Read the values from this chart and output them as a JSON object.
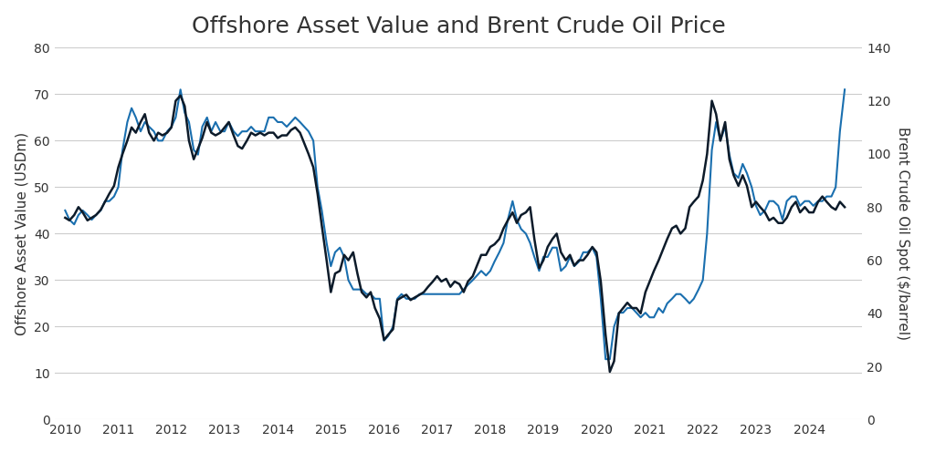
{
  "title": "Offshore Asset Value and Brent Crude Oil Price",
  "ylabel_left": "Offshore Asset Value (USDm)",
  "ylabel_right": "Brent Crude Oil Spot ($/barrel)",
  "ylim_left": [
    0,
    80
  ],
  "ylim_right": [
    0,
    140
  ],
  "yticks_left": [
    0,
    10,
    20,
    30,
    40,
    50,
    60,
    70,
    80
  ],
  "yticks_right": [
    0,
    20,
    40,
    60,
    80,
    100,
    120,
    140
  ],
  "xlim": [
    2009.8,
    2025.0
  ],
  "xticks": [
    2010,
    2011,
    2012,
    2013,
    2014,
    2015,
    2016,
    2017,
    2018,
    2019,
    2020,
    2021,
    2022,
    2023,
    2024
  ],
  "color_offshore": "#1a6faf",
  "color_brent": "#0d1b2a",
  "linewidth_offshore": 1.5,
  "linewidth_brent": 1.8,
  "background_color": "#ffffff",
  "grid_color": "#cccccc",
  "title_fontsize": 18,
  "label_fontsize": 11,
  "tick_fontsize": 10,
  "brent_data": {
    "dates": [
      2010.0,
      2010.08,
      2010.17,
      2010.25,
      2010.33,
      2010.42,
      2010.5,
      2010.58,
      2010.67,
      2010.75,
      2010.83,
      2010.92,
      2011.0,
      2011.08,
      2011.17,
      2011.25,
      2011.33,
      2011.42,
      2011.5,
      2011.58,
      2011.67,
      2011.75,
      2011.83,
      2011.92,
      2012.0,
      2012.08,
      2012.17,
      2012.25,
      2012.33,
      2012.42,
      2012.5,
      2012.58,
      2012.67,
      2012.75,
      2012.83,
      2012.92,
      2013.0,
      2013.08,
      2013.17,
      2013.25,
      2013.33,
      2013.42,
      2013.5,
      2013.58,
      2013.67,
      2013.75,
      2013.83,
      2013.92,
      2014.0,
      2014.08,
      2014.17,
      2014.25,
      2014.33,
      2014.42,
      2014.5,
      2014.58,
      2014.67,
      2014.75,
      2014.83,
      2014.92,
      2015.0,
      2015.08,
      2015.17,
      2015.25,
      2015.33,
      2015.42,
      2015.5,
      2015.58,
      2015.67,
      2015.75,
      2015.83,
      2015.92,
      2016.0,
      2016.08,
      2016.17,
      2016.25,
      2016.33,
      2016.42,
      2016.5,
      2016.58,
      2016.67,
      2016.75,
      2016.83,
      2016.92,
      2017.0,
      2017.08,
      2017.17,
      2017.25,
      2017.33,
      2017.42,
      2017.5,
      2017.58,
      2017.67,
      2017.75,
      2017.83,
      2017.92,
      2018.0,
      2018.08,
      2018.17,
      2018.25,
      2018.33,
      2018.42,
      2018.5,
      2018.58,
      2018.67,
      2018.75,
      2018.83,
      2018.92,
      2019.0,
      2019.08,
      2019.17,
      2019.25,
      2019.33,
      2019.42,
      2019.5,
      2019.58,
      2019.67,
      2019.75,
      2019.83,
      2019.92,
      2020.0,
      2020.08,
      2020.17,
      2020.25,
      2020.33,
      2020.42,
      2020.5,
      2020.58,
      2020.67,
      2020.75,
      2020.83,
      2020.92,
      2021.0,
      2021.08,
      2021.17,
      2021.25,
      2021.33,
      2021.42,
      2021.5,
      2021.58,
      2021.67,
      2021.75,
      2021.83,
      2021.92,
      2022.0,
      2022.08,
      2022.17,
      2022.25,
      2022.33,
      2022.42,
      2022.5,
      2022.58,
      2022.67,
      2022.75,
      2022.83,
      2022.92,
      2023.0,
      2023.08,
      2023.17,
      2023.25,
      2023.33,
      2023.42,
      2023.5,
      2023.58,
      2023.67,
      2023.75,
      2023.83,
      2023.92,
      2024.0,
      2024.08,
      2024.17,
      2024.25,
      2024.33,
      2024.42,
      2024.5,
      2024.58,
      2024.67
    ],
    "values": [
      76,
      75,
      77,
      80,
      78,
      75,
      76,
      77,
      79,
      82,
      85,
      88,
      95,
      100,
      105,
      110,
      108,
      112,
      115,
      108,
      105,
      108,
      107,
      108,
      110,
      120,
      122,
      118,
      105,
      98,
      102,
      106,
      112,
      108,
      107,
      108,
      110,
      112,
      107,
      103,
      102,
      105,
      108,
      107,
      108,
      107,
      108,
      108,
      106,
      107,
      107,
      109,
      110,
      108,
      104,
      100,
      95,
      85,
      73,
      60,
      48,
      55,
      56,
      62,
      60,
      63,
      55,
      48,
      46,
      48,
      42,
      38,
      30,
      32,
      34,
      45,
      46,
      47,
      45,
      46,
      47,
      48,
      50,
      52,
      54,
      52,
      53,
      50,
      52,
      51,
      48,
      52,
      54,
      58,
      62,
      62,
      65,
      66,
      68,
      72,
      75,
      78,
      74,
      77,
      78,
      80,
      68,
      57,
      60,
      65,
      68,
      70,
      63,
      60,
      62,
      58,
      60,
      60,
      62,
      65,
      63,
      52,
      32,
      18,
      22,
      40,
      42,
      44,
      42,
      42,
      40,
      48,
      52,
      56,
      60,
      64,
      68,
      72,
      73,
      70,
      72,
      80,
      82,
      84,
      90,
      100,
      120,
      115,
      105,
      112,
      98,
      92,
      88,
      92,
      88,
      80,
      82,
      80,
      78,
      75,
      76,
      74,
      74,
      76,
      80,
      82,
      78,
      80,
      78,
      78,
      82,
      84,
      82,
      80,
      79,
      82,
      80
    ]
  },
  "offshore_data": {
    "dates": [
      2010.0,
      2010.08,
      2010.17,
      2010.25,
      2010.33,
      2010.42,
      2010.5,
      2010.58,
      2010.67,
      2010.75,
      2010.83,
      2010.92,
      2011.0,
      2011.08,
      2011.17,
      2011.25,
      2011.33,
      2011.42,
      2011.5,
      2011.58,
      2011.67,
      2011.75,
      2011.83,
      2011.92,
      2012.0,
      2012.08,
      2012.17,
      2012.25,
      2012.33,
      2012.42,
      2012.5,
      2012.58,
      2012.67,
      2012.75,
      2012.83,
      2012.92,
      2013.0,
      2013.08,
      2013.17,
      2013.25,
      2013.33,
      2013.42,
      2013.5,
      2013.58,
      2013.67,
      2013.75,
      2013.83,
      2013.92,
      2014.0,
      2014.08,
      2014.17,
      2014.25,
      2014.33,
      2014.42,
      2014.5,
      2014.58,
      2014.67,
      2014.75,
      2014.83,
      2014.92,
      2015.0,
      2015.08,
      2015.17,
      2015.25,
      2015.33,
      2015.42,
      2015.5,
      2015.58,
      2015.67,
      2015.75,
      2015.83,
      2015.92,
      2016.0,
      2016.08,
      2016.17,
      2016.25,
      2016.33,
      2016.42,
      2016.5,
      2016.58,
      2016.67,
      2016.75,
      2016.83,
      2016.92,
      2017.0,
      2017.08,
      2017.17,
      2017.25,
      2017.33,
      2017.42,
      2017.5,
      2017.58,
      2017.67,
      2017.75,
      2017.83,
      2017.92,
      2018.0,
      2018.08,
      2018.17,
      2018.25,
      2018.33,
      2018.42,
      2018.5,
      2018.58,
      2018.67,
      2018.75,
      2018.83,
      2018.92,
      2019.0,
      2019.08,
      2019.17,
      2019.25,
      2019.33,
      2019.42,
      2019.5,
      2019.58,
      2019.67,
      2019.75,
      2019.83,
      2019.92,
      2020.0,
      2020.08,
      2020.17,
      2020.25,
      2020.33,
      2020.42,
      2020.5,
      2020.58,
      2020.67,
      2020.75,
      2020.83,
      2020.92,
      2021.0,
      2021.08,
      2021.17,
      2021.25,
      2021.33,
      2021.42,
      2021.5,
      2021.58,
      2021.67,
      2021.75,
      2021.83,
      2021.92,
      2022.0,
      2022.08,
      2022.17,
      2022.25,
      2022.33,
      2022.42,
      2022.5,
      2022.58,
      2022.67,
      2022.75,
      2022.83,
      2022.92,
      2023.0,
      2023.08,
      2023.17,
      2023.25,
      2023.33,
      2023.42,
      2023.5,
      2023.58,
      2023.67,
      2023.75,
      2023.83,
      2023.92,
      2024.0,
      2024.08,
      2024.17,
      2024.25,
      2024.33,
      2024.42,
      2024.5,
      2024.58,
      2024.67
    ],
    "values": [
      45,
      43,
      42,
      44,
      45,
      44,
      43,
      44,
      45,
      47,
      47,
      48,
      50,
      58,
      64,
      67,
      65,
      62,
      64,
      63,
      62,
      60,
      60,
      62,
      63,
      65,
      71,
      66,
      64,
      58,
      57,
      63,
      65,
      62,
      64,
      62,
      62,
      64,
      62,
      61,
      62,
      62,
      63,
      62,
      62,
      62,
      65,
      65,
      64,
      64,
      63,
      64,
      65,
      64,
      63,
      62,
      60,
      50,
      45,
      38,
      33,
      36,
      37,
      35,
      30,
      28,
      28,
      28,
      27,
      27,
      26,
      26,
      17,
      18,
      20,
      26,
      27,
      26,
      26,
      26,
      27,
      27,
      27,
      27,
      27,
      27,
      27,
      27,
      27,
      27,
      28,
      29,
      30,
      31,
      32,
      31,
      32,
      34,
      36,
      38,
      43,
      47,
      43,
      41,
      40,
      38,
      35,
      32,
      35,
      35,
      37,
      37,
      32,
      33,
      35,
      33,
      34,
      36,
      36,
      37,
      35,
      26,
      13,
      13,
      20,
      23,
      23,
      24,
      24,
      23,
      22,
      23,
      22,
      22,
      24,
      23,
      25,
      26,
      27,
      27,
      26,
      25,
      26,
      28,
      30,
      40,
      58,
      64,
      60,
      63,
      57,
      53,
      52,
      55,
      53,
      50,
      46,
      44,
      45,
      47,
      47,
      46,
      43,
      47,
      48,
      48,
      46,
      47,
      47,
      46,
      47,
      47,
      48,
      48,
      50,
      62,
      71
    ]
  }
}
